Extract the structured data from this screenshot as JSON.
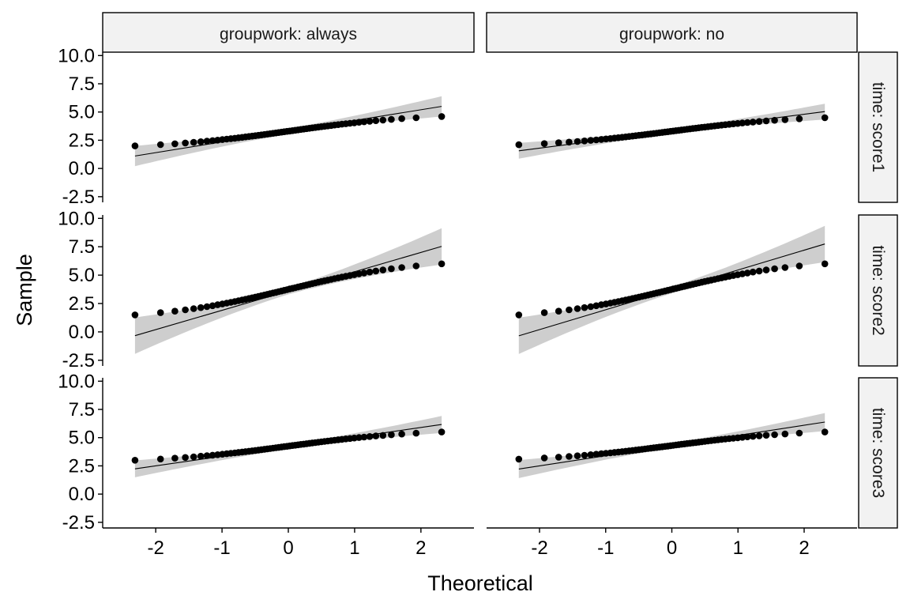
{
  "chart_data": {
    "type": "scatter",
    "subtype": "qq-plot-facet-grid",
    "xlabel": "Theoretical",
    "ylabel": "Sample",
    "xlim": [
      -2.8,
      2.8
    ],
    "ylim": [
      -3.0,
      10.3
    ],
    "x_ticks": [
      "-2",
      "-1",
      "0",
      "1",
      "2"
    ],
    "y_ticks": [
      "-2.5",
      "0.0",
      "2.5",
      "5.0",
      "7.5",
      "10.0"
    ],
    "col_facets": [
      "groupwork: always",
      "groupwork: no"
    ],
    "row_facets": [
      "time: score1",
      "time: score2",
      "time: score3"
    ],
    "n_points_per_panel": 60,
    "panels": [
      {
        "row": 0,
        "col": 0,
        "sample_range": [
          2.0,
          4.6
        ],
        "line": {
          "intercept": 3.3,
          "slope": 0.95
        },
        "band_halfwidth": [
          0.25,
          0.9
        ]
      },
      {
        "row": 0,
        "col": 1,
        "sample_range": [
          2.1,
          4.5
        ],
        "line": {
          "intercept": 3.3,
          "slope": 0.75
        },
        "band_halfwidth": [
          0.2,
          0.7
        ]
      },
      {
        "row": 1,
        "col": 0,
        "sample_range": [
          1.5,
          6.0
        ],
        "line": {
          "intercept": 3.6,
          "slope": 1.7
        },
        "band_halfwidth": [
          0.3,
          1.6
        ]
      },
      {
        "row": 1,
        "col": 1,
        "sample_range": [
          1.5,
          6.0
        ],
        "line": {
          "intercept": 3.7,
          "slope": 1.75
        },
        "band_halfwidth": [
          0.3,
          1.6
        ]
      },
      {
        "row": 2,
        "col": 0,
        "sample_range": [
          3.0,
          5.5
        ],
        "line": {
          "intercept": 4.2,
          "slope": 0.85
        },
        "band_halfwidth": [
          0.2,
          0.75
        ]
      },
      {
        "row": 2,
        "col": 1,
        "sample_range": [
          3.1,
          5.5
        ],
        "line": {
          "intercept": 4.3,
          "slope": 0.9
        },
        "band_halfwidth": [
          0.2,
          0.8
        ]
      }
    ],
    "legend": "none",
    "grid": false
  }
}
